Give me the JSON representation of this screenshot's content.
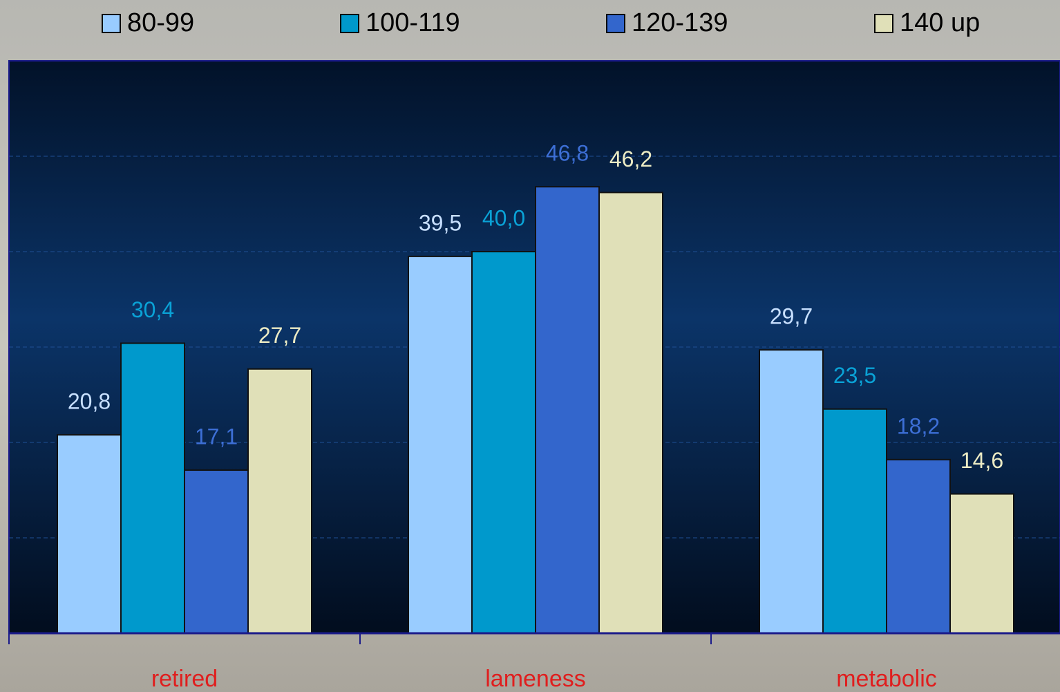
{
  "chart_data": {
    "type": "bar",
    "categories": [
      "retired",
      "lameness",
      "metabolic"
    ],
    "series": [
      {
        "name": "80-99",
        "color": "#99ccff",
        "values": [
          20.8,
          39.5,
          29.7
        ],
        "value_labels": [
          "20,8",
          "39,5",
          "29,7"
        ]
      },
      {
        "name": "100-119",
        "color": "#0099cc",
        "values": [
          30.4,
          40.0,
          23.5
        ],
        "value_labels": [
          "30,4",
          "40,0",
          "23,5"
        ]
      },
      {
        "name": "120-139",
        "color": "#3366cc",
        "values": [
          17.1,
          46.8,
          18.2
        ],
        "value_labels": [
          "17,1",
          "46,8",
          "18,2"
        ]
      },
      {
        "name": "140 up",
        "color": "#e0e0b8",
        "values": [
          27.7,
          46.2,
          14.6
        ],
        "value_labels": [
          "27,7",
          "46,2",
          "14,6"
        ]
      }
    ],
    "ylim": [
      0,
      60
    ],
    "yticks": [
      0,
      10,
      20,
      30,
      40,
      50,
      60
    ],
    "grid": true,
    "legend": "top"
  }
}
